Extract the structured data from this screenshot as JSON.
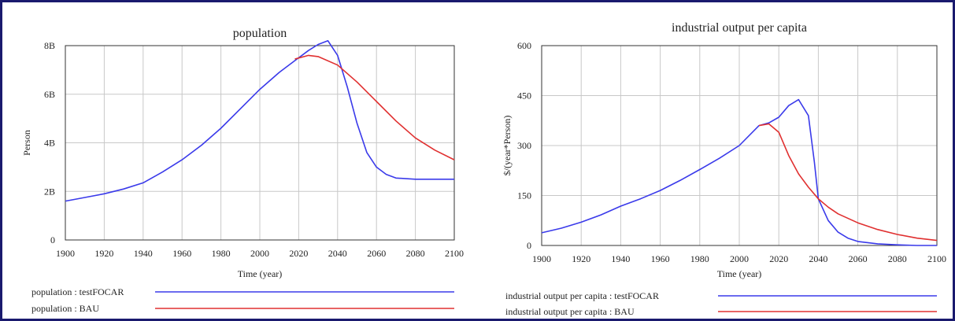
{
  "chart_data": [
    {
      "type": "line",
      "title": "population",
      "xlabel": "Time (year)",
      "ylabel": "Person",
      "xlim": [
        1900,
        2100
      ],
      "ylim": [
        0,
        8000000000
      ],
      "x_ticks": [
        "1900",
        "1920",
        "1940",
        "1960",
        "1980",
        "2000",
        "2020",
        "2040",
        "2060",
        "2080",
        "2100"
      ],
      "y_ticks": [
        "0",
        "2B",
        "4B",
        "6B",
        "8B"
      ],
      "grid": true,
      "legend_position": "bottom",
      "series": [
        {
          "name": "population : testFOCAR",
          "color": "#3a3aea",
          "x": [
            1900,
            1910,
            1920,
            1930,
            1940,
            1950,
            1960,
            1970,
            1980,
            1990,
            2000,
            2010,
            2020,
            2025,
            2030,
            2035,
            2040,
            2045,
            2050,
            2055,
            2060,
            2065,
            2070,
            2080,
            2090,
            2100
          ],
          "y": [
            1600000000.0,
            1750000000.0,
            1900000000.0,
            2100000000.0,
            2350000000.0,
            2800000000.0,
            3300000000.0,
            3900000000.0,
            4600000000.0,
            5400000000.0,
            6200000000.0,
            6900000000.0,
            7500000000.0,
            7800000000.0,
            8050000000.0,
            8200000000.0,
            7600000000.0,
            6300000000.0,
            4800000000.0,
            3600000000.0,
            3000000000.0,
            2700000000.0,
            2550000000.0,
            2500000000.0,
            2500000000.0,
            2500000000.0
          ]
        },
        {
          "name": "population : BAU",
          "color": "#e03030",
          "x": [
            2018,
            2025,
            2030,
            2040,
            2050,
            2060,
            2070,
            2080,
            2090,
            2100
          ],
          "y": [
            7450000000.0,
            7600000000.0,
            7550000000.0,
            7200000000.0,
            6500000000.0,
            5700000000.0,
            4900000000.0,
            4200000000.0,
            3700000000.0,
            3300000000.0
          ]
        }
      ]
    },
    {
      "type": "line",
      "title": "industrial output per capita",
      "xlabel": "Time (year)",
      "ylabel": "$/(year*Person)",
      "xlim": [
        1900,
        2100
      ],
      "ylim": [
        0,
        600
      ],
      "x_ticks": [
        "1900",
        "1920",
        "1940",
        "1960",
        "1980",
        "2000",
        "2020",
        "2040",
        "2060",
        "2080",
        "2100"
      ],
      "y_ticks": [
        "0",
        "150",
        "300",
        "450",
        "600"
      ],
      "grid": true,
      "legend_position": "bottom",
      "series": [
        {
          "name": "industrial output per capita : testFOCAR",
          "color": "#3a3aea",
          "x": [
            1900,
            1910,
            1920,
            1930,
            1940,
            1950,
            1960,
            1970,
            1980,
            1990,
            2000,
            2010,
            2015,
            2020,
            2025,
            2030,
            2035,
            2038,
            2040,
            2045,
            2050,
            2055,
            2060,
            2070,
            2080,
            2090,
            2100
          ],
          "y": [
            38,
            52,
            70,
            92,
            118,
            140,
            165,
            195,
            228,
            262,
            300,
            360,
            368,
            385,
            420,
            438,
            390,
            250,
            140,
            75,
            40,
            22,
            12,
            5,
            2,
            0,
            0
          ]
        },
        {
          "name": "industrial output per capita : BAU",
          "color": "#e03030",
          "x": [
            2010,
            2015,
            2020,
            2025,
            2030,
            2035,
            2040,
            2045,
            2050,
            2060,
            2070,
            2080,
            2090,
            2100
          ],
          "y": [
            360,
            365,
            340,
            270,
            215,
            175,
            140,
            115,
            95,
            68,
            48,
            33,
            22,
            15
          ]
        }
      ]
    }
  ]
}
